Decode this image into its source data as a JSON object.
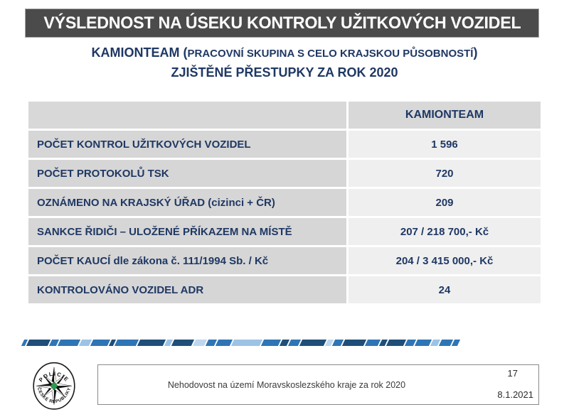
{
  "header": {
    "title": "VÝSLEDNOST NA ÚSEKU KONTROLY UŽITKOVÝCH VOZIDEL"
  },
  "subtitle": {
    "line1_lead": "KAMIONTEAM (",
    "line1_small": "PRACOVNÍ SKUPINA S CELO KRAJSKOU PŮSOBNOSTÍ",
    "line1_close": ")",
    "line2": "ZJIŠTĚNÉ PŘESTUPKY ZA ROK 2020"
  },
  "table": {
    "column_header": "KAMIONTEAM",
    "rows": [
      {
        "label": "POČET KONTROL UŽITKOVÝCH VOZIDEL",
        "value": "1 596"
      },
      {
        "label": "POČET PROTOKOLŮ TSK",
        "value": "720"
      },
      {
        "label": "OZNÁMENO NA KRAJSKÝ ÚŘAD (cizinci + ČR)",
        "value": "209"
      },
      {
        "label": "SANKCE ŘIDIČI – ULOŽENÉ PŘÍKAZEM NA MÍSTĚ",
        "value": "207 / 218 700,- Kč"
      },
      {
        "label": "POČET KAUCÍ dle zákona č. 111/1994 Sb. / Kč",
        "value": "204 / 3 415 000,- Kč"
      },
      {
        "label": "KONTROLOVÁNO VOZIDEL ADR",
        "value": "24"
      }
    ]
  },
  "footer": {
    "caption": "Nehodovost na území Moravskoslezského kraje za rok 2020",
    "page_number": "17",
    "date": "8.1.2021",
    "logo_text_top": "POLICIE",
    "logo_text_bottom": "ČESKÉ REPUBLIKY"
  },
  "colors": {
    "title_bar_bg": "#4b4b4b",
    "navy_text": "#1f3864",
    "table_label_bg": "#d6d6d6",
    "table_value_bg": "#efefef",
    "table_header_bg": "#d8d8d8",
    "stripe_light": "#9cc3e5",
    "stripe_medium": "#2e75b6",
    "stripe_dark": "#1f4e79",
    "stripe_pale": "#bdd7ee",
    "logo_green": "#2e9b50"
  },
  "stripe": {
    "segments": [
      {
        "w": 5,
        "c": "#2e75b6"
      },
      {
        "w": 30,
        "c": "#1f4e79"
      },
      {
        "w": 10,
        "c": "#2e75b6"
      },
      {
        "w": 28,
        "c": "#2e75b6"
      },
      {
        "w": 14,
        "c": "#9cc3e5"
      },
      {
        "w": 24,
        "c": "#2e75b6"
      },
      {
        "w": 6,
        "c": "#1f4e79"
      },
      {
        "w": 30,
        "c": "#2e75b6"
      },
      {
        "w": 36,
        "c": "#1f4e79"
      },
      {
        "w": 8,
        "c": "#9cc3e5"
      },
      {
        "w": 28,
        "c": "#1f4e79"
      },
      {
        "w": 16,
        "c": "#bdd7ee"
      },
      {
        "w": 12,
        "c": "#2e75b6"
      },
      {
        "w": 20,
        "c": "#2e75b6"
      },
      {
        "w": 40,
        "c": "#9cc3e5"
      },
      {
        "w": 24,
        "c": "#2e75b6"
      },
      {
        "w": 10,
        "c": "#1f4e79"
      },
      {
        "w": 14,
        "c": "#2e75b6"
      },
      {
        "w": 34,
        "c": "#1f4e79"
      },
      {
        "w": 8,
        "c": "#bdd7ee"
      },
      {
        "w": 12,
        "c": "#2e75b6"
      },
      {
        "w": 30,
        "c": "#1f4e79"
      },
      {
        "w": 18,
        "c": "#2e75b6"
      },
      {
        "w": 8,
        "c": "#1f4e79"
      },
      {
        "w": 24,
        "c": "#1f4e79"
      },
      {
        "w": 12,
        "c": "#2e75b6"
      },
      {
        "w": 20,
        "c": "#2e75b6"
      },
      {
        "w": 10,
        "c": "#9cc3e5"
      },
      {
        "w": 16,
        "c": "#2e75b6"
      },
      {
        "w": 8,
        "c": "#2e75b6"
      }
    ]
  }
}
